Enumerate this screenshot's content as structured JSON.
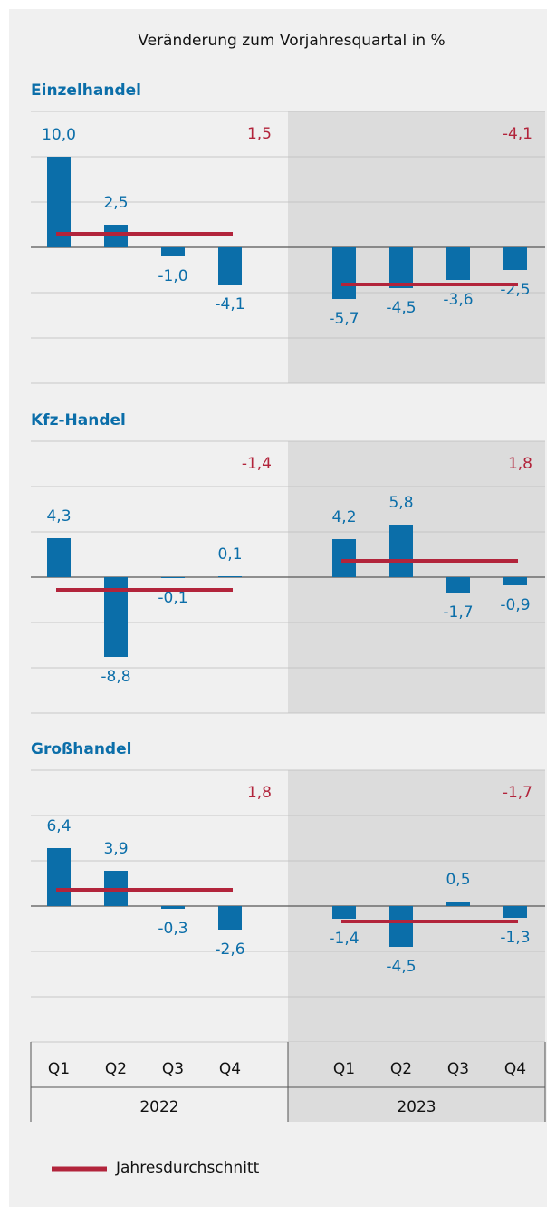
{
  "title": "Veränderung zum Vorjahresquartal in %",
  "x_axis": {
    "groups": [
      {
        "label": "2022",
        "categories": [
          "Q1",
          "Q2",
          "Q3",
          "Q4"
        ]
      },
      {
        "label": "2023",
        "categories": [
          "Q1",
          "Q2",
          "Q3",
          "Q4"
        ]
      }
    ]
  },
  "legend": {
    "label": "Jahresdurchschnitt"
  },
  "chart_data": [
    {
      "type": "bar",
      "title": "Einzelhandel",
      "color": "#0b6ea9",
      "average_color": "#b2243b",
      "values": [
        10.0,
        2.5,
        -1.0,
        -4.1,
        -5.7,
        -4.5,
        -3.6,
        -2.5
      ],
      "value_labels": [
        "10,0",
        "2,5",
        "-1,0",
        "-4,1",
        "-5,7",
        "-4,5",
        "-3,6",
        "-2,5"
      ],
      "averages": [
        1.5,
        -4.1
      ],
      "average_labels": [
        "1,5",
        "-4,1"
      ],
      "ylim": [
        -15,
        15
      ],
      "yticks": [
        -15,
        -10,
        -5,
        0,
        5,
        10,
        15
      ]
    },
    {
      "type": "bar",
      "title": "Kfz-Handel",
      "color": "#0b6ea9",
      "average_color": "#b2243b",
      "values": [
        4.3,
        -8.8,
        -0.1,
        0.1,
        4.2,
        5.8,
        -1.7,
        -0.9
      ],
      "value_labels": [
        "4,3",
        "-8,8",
        "-0,1",
        "0,1",
        "4,2",
        "5,8",
        "-1,7",
        "-0,9"
      ],
      "averages": [
        -1.4,
        1.8
      ],
      "average_labels": [
        "-1,4",
        "1,8"
      ],
      "ylim": [
        -15,
        15
      ],
      "yticks": [
        -15,
        -10,
        -5,
        0,
        5,
        10,
        15
      ]
    },
    {
      "type": "bar",
      "title": "Großhandel",
      "color": "#0b6ea9",
      "average_color": "#b2243b",
      "values": [
        6.4,
        3.9,
        -0.3,
        -2.6,
        -1.4,
        -4.5,
        0.5,
        -1.3
      ],
      "value_labels": [
        "6,4",
        "3,9",
        "-0,3",
        "-2,6",
        "-1,4",
        "-4,5",
        "0,5",
        "-1,3"
      ],
      "averages": [
        1.8,
        -1.7
      ],
      "average_labels": [
        "1,8",
        "-1,7"
      ],
      "ylim": [
        -15,
        15
      ],
      "yticks": [
        -15,
        -10,
        -5,
        0,
        5,
        10,
        15
      ]
    }
  ]
}
